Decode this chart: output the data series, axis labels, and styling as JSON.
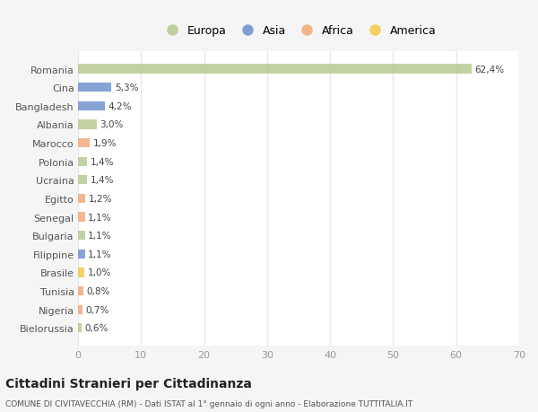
{
  "categories": [
    "Bielorussia",
    "Nigeria",
    "Tunisia",
    "Brasile",
    "Filippine",
    "Bulgaria",
    "Senegal",
    "Egitto",
    "Ucraina",
    "Polonia",
    "Marocco",
    "Albania",
    "Bangladesh",
    "Cina",
    "Romania"
  ],
  "values": [
    0.6,
    0.7,
    0.8,
    1.0,
    1.1,
    1.1,
    1.1,
    1.2,
    1.4,
    1.4,
    1.9,
    3.0,
    4.2,
    5.3,
    62.4
  ],
  "labels": [
    "0,6%",
    "0,7%",
    "0,8%",
    "1,0%",
    "1,1%",
    "1,1%",
    "1,1%",
    "1,2%",
    "1,4%",
    "1,4%",
    "1,9%",
    "3,0%",
    "4,2%",
    "5,3%",
    "62,4%"
  ],
  "colors": [
    "#b5c98e",
    "#f0a878",
    "#f0a878",
    "#f5c842",
    "#6b8fcc",
    "#b5c98e",
    "#f0a878",
    "#f0a878",
    "#b5c98e",
    "#b5c98e",
    "#f0a878",
    "#b5c98e",
    "#6b8fcc",
    "#6b8fcc",
    "#b5c98e"
  ],
  "legend_labels": [
    "Europa",
    "Asia",
    "Africa",
    "America"
  ],
  "legend_colors": [
    "#b5c98e",
    "#6b8fcc",
    "#f0a878",
    "#f5c842"
  ],
  "title": "Cittadini Stranieri per Cittadinanza",
  "subtitle": "COMUNE DI CIVITAVECCHIA (RM) - Dati ISTAT al 1° gennaio di ogni anno - Elaborazione TUTTITALIA.IT",
  "xlim": [
    0,
    70
  ],
  "xticks": [
    0,
    10,
    20,
    30,
    40,
    50,
    60,
    70
  ],
  "bg_color": "#f5f5f5",
  "bar_bg_color": "#ffffff",
  "grid_color": "#e8e8e8"
}
